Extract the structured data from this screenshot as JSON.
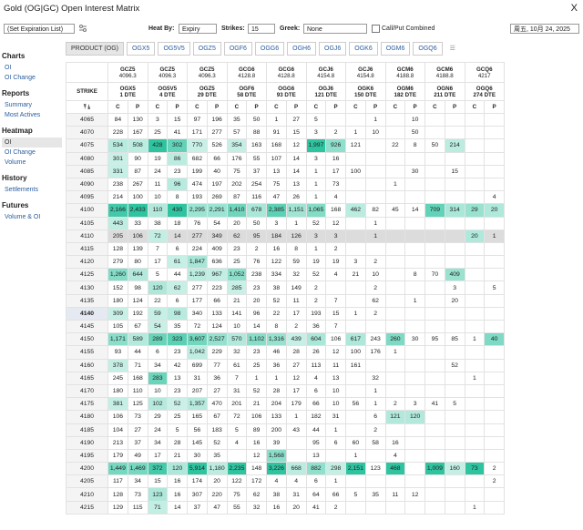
{
  "header": {
    "title": "Gold (OG|GC) Open Interest Matrix",
    "close": "X"
  },
  "toolbar": {
    "expiration": "(Set Expiration List)",
    "heat_by_label": "Heat By:",
    "heat_by": "Expiry",
    "strikes_label": "Strikes:",
    "strikes": "15",
    "greek_label": "Greek:",
    "greek": "None",
    "combined": "Call/Put Combined",
    "date": "周五, 10月 24, 2025"
  },
  "sidebar": [
    {
      "title": "Charts",
      "items": [
        "OI",
        "OI Change"
      ]
    },
    {
      "title": "Reports",
      "items": [
        "Summary",
        "Most Actives"
      ]
    },
    {
      "title": "Heatmap",
      "items": [
        "OI",
        "OI Change",
        "Volume"
      ]
    },
    {
      "title": "History",
      "items": [
        "Settlements"
      ]
    },
    {
      "title": "Futures",
      "items": [
        "Volume & OI"
      ]
    }
  ],
  "tabs": [
    "PRODUCT (OG)",
    "OGX5",
    "OG5V5",
    "OGZ5",
    "OGF6",
    "OGG6",
    "OGH6",
    "OGJ6",
    "OGK6",
    "OGM6",
    "OGQ6"
  ],
  "table": {
    "strike_header": "STRIKE",
    "call": "C",
    "put": "P",
    "futures": [
      {
        "code": "GCZ5",
        "price": "4096.3"
      },
      {
        "code": "GCZ5",
        "price": "4096.3"
      },
      {
        "code": "GCZ5",
        "price": "4096.3"
      },
      {
        "code": "GCG6",
        "price": "4128.8"
      },
      {
        "code": "GCG6",
        "price": "4128.8"
      },
      {
        "code": "GCJ6",
        "price": "4154.8"
      },
      {
        "code": "GCJ6",
        "price": "4154.8"
      },
      {
        "code": "GCM6",
        "price": "4188.8"
      },
      {
        "code": "GCM6",
        "price": "4188.8"
      },
      {
        "code": "GCQ6",
        "price": "4217"
      }
    ],
    "options": [
      {
        "code": "OGX5",
        "dte": "1 DTE"
      },
      {
        "code": "OG5V5",
        "dte": "4 DTE"
      },
      {
        "code": "OGZ5",
        "dte": "29 DTE"
      },
      {
        "code": "OGF6",
        "dte": "58 DTE"
      },
      {
        "code": "OGG6",
        "dte": "93 DTE"
      },
      {
        "code": "OGJ6",
        "dte": "121 DTE"
      },
      {
        "code": "OGK6",
        "dte": "150 DTE"
      },
      {
        "code": "OGM6",
        "dte": "182 DTE"
      },
      {
        "code": "OGN6",
        "dte": "211 DTE"
      },
      {
        "code": "OGQ6",
        "dte": "274 DTE"
      }
    ],
    "rows": [
      {
        "strike": 4065,
        "cells": [
          "84",
          "130",
          "3",
          "15",
          "97",
          "196",
          "35",
          "50",
          "1",
          "27",
          "5",
          null,
          null,
          "1",
          null,
          "10",
          null,
          null,
          null,
          null
        ]
      },
      {
        "strike": 4070,
        "cells": [
          "228",
          "167",
          "25",
          "41",
          "171",
          "277",
          "57",
          "88",
          "91",
          "15",
          "3",
          "2",
          "1",
          "10",
          null,
          "50",
          null,
          null,
          null,
          null
        ]
      },
      {
        "strike": 4075,
        "cells": [
          "534",
          "508",
          "428",
          "302",
          "770",
          "526",
          "354",
          "163",
          "168",
          "12",
          "1,997",
          "926",
          "121",
          null,
          "22",
          "8",
          "50",
          "214",
          null,
          null
        ]
      },
      {
        "strike": 4080,
        "cells": [
          "301",
          "90",
          "19",
          "86",
          "682",
          "66",
          "176",
          "55",
          "107",
          "14",
          "3",
          "16",
          null,
          null,
          null,
          null,
          null,
          null,
          null,
          null
        ]
      },
      {
        "strike": 4085,
        "cells": [
          "331",
          "87",
          "24",
          "23",
          "199",
          "40",
          "75",
          "37",
          "13",
          "14",
          "1",
          "17",
          "100",
          null,
          null,
          "30",
          null,
          "15",
          null,
          null
        ]
      },
      {
        "strike": 4090,
        "cells": [
          "238",
          "267",
          "11",
          "96",
          "474",
          "197",
          "202",
          "254",
          "75",
          "13",
          "1",
          "73",
          null,
          null,
          "1",
          null,
          null,
          null,
          null,
          null
        ]
      },
      {
        "strike": 4095,
        "cells": [
          "214",
          "100",
          "10",
          "8",
          "193",
          "269",
          "87",
          "116",
          "47",
          "26",
          "1",
          "4",
          null,
          null,
          null,
          null,
          null,
          null,
          null,
          "4"
        ]
      },
      {
        "strike": 4100,
        "cells": [
          "2,166",
          "2,433",
          "110",
          "430",
          "2,295",
          "2,291",
          "1,410",
          "678",
          "2,385",
          "1,151",
          "1,065",
          "168",
          "462",
          "82",
          "45",
          "14",
          "709",
          "314",
          "29",
          "20"
        ]
      },
      {
        "strike": 4105,
        "cells": [
          "443",
          "33",
          "38",
          "18",
          "76",
          "54",
          "20",
          "50",
          "3",
          "1",
          "52",
          "12",
          null,
          "1",
          null,
          null,
          null,
          null,
          null,
          null
        ]
      },
      {
        "strike": 4110,
        "cells": [
          "205",
          "106",
          "72",
          "14",
          "277",
          "349",
          "62",
          "95",
          "184",
          "126",
          "3",
          "3",
          null,
          "1",
          null,
          null,
          null,
          null,
          "20",
          "1"
        ]
      },
      {
        "strike": 4115,
        "cells": [
          "128",
          "139",
          "7",
          "6",
          "224",
          "409",
          "23",
          "2",
          "16",
          "8",
          "1",
          "2",
          null,
          null,
          null,
          null,
          null,
          null,
          null,
          null
        ]
      },
      {
        "strike": 4120,
        "cells": [
          "279",
          "80",
          "17",
          "61",
          "1,847",
          "636",
          "25",
          "76",
          "122",
          "59",
          "19",
          "19",
          "3",
          "2",
          null,
          null,
          null,
          null,
          null,
          null
        ]
      },
      {
        "strike": 4125,
        "cells": [
          "1,260",
          "644",
          "5",
          "44",
          "1,239",
          "967",
          "1,052",
          "238",
          "334",
          "32",
          "52",
          "4",
          "21",
          "10",
          null,
          "8",
          "70",
          "409",
          null,
          null
        ]
      },
      {
        "strike": 4130,
        "cells": [
          "152",
          "98",
          "120",
          "62",
          "277",
          "223",
          "285",
          "23",
          "38",
          "149",
          "2",
          null,
          null,
          "2",
          null,
          null,
          null,
          "3",
          null,
          "5"
        ]
      },
      {
        "strike": 4135,
        "cells": [
          "180",
          "124",
          "22",
          "6",
          "177",
          "66",
          "21",
          "20",
          "52",
          "11",
          "2",
          "7",
          null,
          "62",
          null,
          "1",
          null,
          "20",
          null,
          null
        ]
      },
      {
        "strike": 4140,
        "cells": [
          "309",
          "192",
          "59",
          "98",
          "340",
          "133",
          "141",
          "96",
          "22",
          "17",
          "193",
          "15",
          "1",
          "2",
          null,
          null,
          null,
          null,
          null,
          null
        ]
      },
      {
        "strike": 4145,
        "cells": [
          "105",
          "67",
          "54",
          "35",
          "72",
          "124",
          "10",
          "14",
          "8",
          "2",
          "36",
          "7",
          null,
          null,
          null,
          null,
          null,
          null,
          null,
          null
        ]
      },
      {
        "strike": 4150,
        "cells": [
          "1,171",
          "589",
          "289",
          "323",
          "3,607",
          "2,527",
          "570",
          "1,102",
          "1,316",
          "439",
          "604",
          "106",
          "617",
          "243",
          "260",
          "30",
          "95",
          "85",
          "1",
          "40"
        ]
      },
      {
        "strike": 4155,
        "cells": [
          "93",
          "44",
          "6",
          "23",
          "1,042",
          "229",
          "32",
          "23",
          "46",
          "28",
          "26",
          "12",
          "100",
          "176",
          "1",
          null,
          null,
          null,
          null,
          null
        ]
      },
      {
        "strike": 4160,
        "cells": [
          "378",
          "71",
          "34",
          "42",
          "699",
          "77",
          "61",
          "25",
          "36",
          "27",
          "113",
          "11",
          "161",
          null,
          null,
          null,
          null,
          "52",
          null,
          null
        ]
      },
      {
        "strike": 4165,
        "cells": [
          "245",
          "168",
          "283",
          "13",
          "31",
          "36",
          "7",
          "1",
          "1",
          "12",
          "4",
          "13",
          null,
          "32",
          null,
          null,
          null,
          null,
          "1",
          null
        ]
      },
      {
        "strike": 4170,
        "cells": [
          "180",
          "110",
          "10",
          "23",
          "207",
          "27",
          "31",
          "52",
          "28",
          "17",
          "6",
          "10",
          null,
          "1",
          null,
          null,
          null,
          null,
          null,
          null
        ]
      },
      {
        "strike": 4175,
        "cells": [
          "381",
          "125",
          "102",
          "52",
          "1,357",
          "470",
          "201",
          "21",
          "204",
          "179",
          "66",
          "10",
          "56",
          "1",
          "2",
          "3",
          "41",
          "5",
          null,
          null
        ]
      },
      {
        "strike": 4180,
        "cells": [
          "106",
          "73",
          "29",
          "25",
          "165",
          "67",
          "72",
          "106",
          "133",
          "1",
          "182",
          "31",
          null,
          "6",
          "121",
          "120",
          null,
          null,
          null,
          null
        ]
      },
      {
        "strike": 4185,
        "cells": [
          "104",
          "27",
          "24",
          "5",
          "56",
          "183",
          "5",
          "89",
          "200",
          "43",
          "44",
          "1",
          null,
          "2",
          null,
          null,
          null,
          null,
          null,
          null
        ]
      },
      {
        "strike": 4190,
        "cells": [
          "213",
          "37",
          "34",
          "28",
          "145",
          "52",
          "4",
          "16",
          "39",
          null,
          "95",
          "6",
          "60",
          "58",
          "16",
          null,
          null,
          null,
          null,
          null
        ]
      },
      {
        "strike": 4195,
        "cells": [
          "179",
          "49",
          "17",
          "21",
          "30",
          "35",
          null,
          "12",
          "1,568",
          null,
          "13",
          null,
          "1",
          null,
          "4",
          null,
          null,
          null,
          null,
          null
        ]
      },
      {
        "strike": 4200,
        "cells": [
          "1,449",
          "1,469",
          "372",
          "120",
          "5,914",
          "1,180",
          "2,235",
          "148",
          "3,226",
          "668",
          "882",
          "298",
          "2,151",
          "123",
          "468",
          null,
          "1,009",
          "160",
          "73",
          "2"
        ]
      },
      {
        "strike": 4205,
        "cells": [
          "117",
          "34",
          "15",
          "16",
          "174",
          "20",
          "122",
          "172",
          "4",
          "4",
          "6",
          "1",
          null,
          null,
          null,
          null,
          null,
          null,
          null,
          "2"
        ]
      },
      {
        "strike": 4210,
        "cells": [
          "128",
          "73",
          "123",
          "16",
          "307",
          "220",
          "75",
          "62",
          "38",
          "31",
          "64",
          "66",
          "5",
          "35",
          "11",
          "12",
          null,
          null,
          null,
          null
        ]
      },
      {
        "strike": 4215,
        "cells": [
          "129",
          "115",
          "71",
          "14",
          "37",
          "47",
          "55",
          "32",
          "16",
          "20",
          "41",
          "2",
          null,
          null,
          null,
          null,
          null,
          null,
          "1",
          null
        ]
      }
    ]
  }
}
